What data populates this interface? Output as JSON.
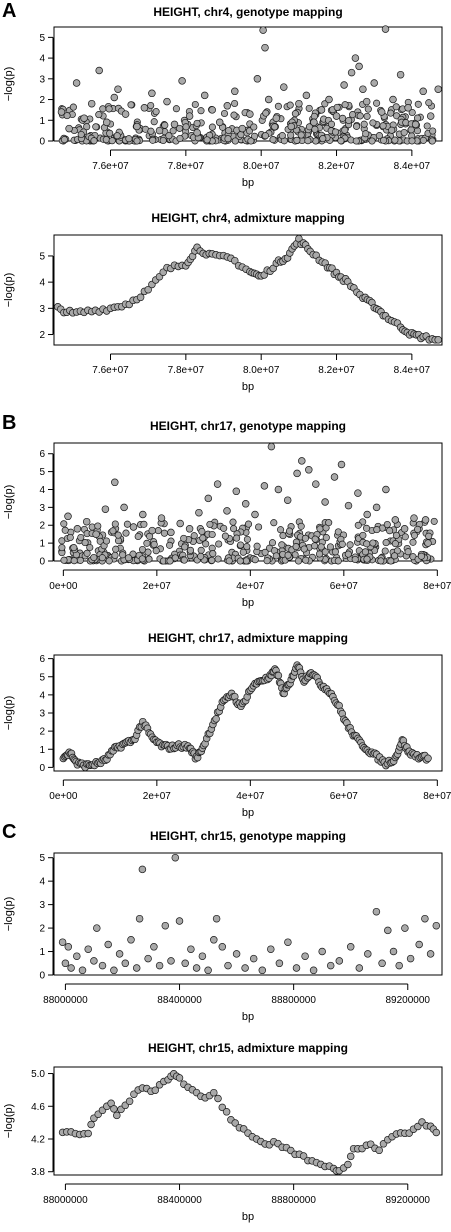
{
  "panel_letters": [
    "A",
    "B",
    "C"
  ],
  "chart_data": [
    {
      "type": "scatter",
      "title": "HEIGHT, chr4, genotype mapping",
      "xlabel": "bp",
      "ylabel": "−log(p)",
      "xlim": [
        74500000,
        84800000
      ],
      "ylim": [
        0,
        5.5
      ],
      "xticks": [
        76000000,
        78000000,
        80000000,
        82000000,
        84000000
      ],
      "xtick_labels": [
        "7.6e+07",
        "7.8e+07",
        "8.0e+07",
        "8.2e+07",
        "8.4e+07"
      ],
      "yticks": [
        0,
        1,
        2,
        3,
        4,
        5
      ],
      "ytick_labels": [
        "0",
        "1",
        "2",
        "3",
        "4",
        "5"
      ],
      "points": [
        [
          74700000,
          1.4
        ],
        [
          74900000,
          0.6
        ],
        [
          75100000,
          2.8
        ],
        [
          75300000,
          1.1
        ],
        [
          75500000,
          1.8
        ],
        [
          75700000,
          3.4
        ],
        [
          75900000,
          0.9
        ],
        [
          76100000,
          2.1
        ],
        [
          76200000,
          2.5
        ],
        [
          76400000,
          1.3
        ],
        [
          76700000,
          0.7
        ],
        [
          76900000,
          1.6
        ],
        [
          77100000,
          2.3
        ],
        [
          77300000,
          0.5
        ],
        [
          77500000,
          1.9
        ],
        [
          77700000,
          0.8
        ],
        [
          77900000,
          2.9
        ],
        [
          78100000,
          1.2
        ],
        [
          78300000,
          0.4
        ],
        [
          78500000,
          2.2
        ],
        [
          78700000,
          1.5
        ],
        [
          78900000,
          0.9
        ],
        [
          79100000,
          1.7
        ],
        [
          79300000,
          2.4
        ],
        [
          79500000,
          0.6
        ],
        [
          79700000,
          1.3
        ],
        [
          79900000,
          3.0
        ],
        [
          80050000,
          5.35
        ],
        [
          80100000,
          4.5
        ],
        [
          80200000,
          2.0
        ],
        [
          80400000,
          1.1
        ],
        [
          80600000,
          2.6
        ],
        [
          80800000,
          0.7
        ],
        [
          81000000,
          1.8
        ],
        [
          81200000,
          2.2
        ],
        [
          81400000,
          0.9
        ],
        [
          81600000,
          1.5
        ],
        [
          81800000,
          2.0
        ],
        [
          82000000,
          1.2
        ],
        [
          82200000,
          2.7
        ],
        [
          82400000,
          3.3
        ],
        [
          82500000,
          4.0
        ],
        [
          82600000,
          3.6
        ],
        [
          82700000,
          2.5
        ],
        [
          82800000,
          1.9
        ],
        [
          83000000,
          2.8
        ],
        [
          83200000,
          1.4
        ],
        [
          83300000,
          5.4
        ],
        [
          83500000,
          2.0
        ],
        [
          83700000,
          3.2
        ],
        [
          83900000,
          1.6
        ],
        [
          84100000,
          0.8
        ],
        [
          84300000,
          2.4
        ],
        [
          84500000,
          1.2
        ],
        [
          84700000,
          2.5
        ]
      ]
    },
    {
      "type": "scatter",
      "title": "HEIGHT, chr4, admixture mapping",
      "xlabel": "bp",
      "ylabel": "−log(p)",
      "xlim": [
        74500000,
        84800000
      ],
      "ylim": [
        1.6,
        5.8
      ],
      "xticks": [
        76000000,
        78000000,
        80000000,
        82000000,
        84000000
      ],
      "xtick_labels": [
        "7.6e+07",
        "7.8e+07",
        "8.0e+07",
        "8.2e+07",
        "8.4e+07"
      ],
      "yticks": [
        2,
        3,
        4,
        5
      ],
      "ytick_labels": [
        "2",
        "3",
        "4",
        "5"
      ],
      "curve": [
        [
          74600000,
          3.0
        ],
        [
          75000000,
          2.8
        ],
        [
          75500000,
          2.9
        ],
        [
          76000000,
          3.0
        ],
        [
          76500000,
          3.2
        ],
        [
          77000000,
          3.7
        ],
        [
          77500000,
          4.5
        ],
        [
          78000000,
          4.7
        ],
        [
          78300000,
          5.3
        ],
        [
          78700000,
          5.0
        ],
        [
          79200000,
          4.9
        ],
        [
          79700000,
          4.4
        ],
        [
          80000000,
          4.2
        ],
        [
          80400000,
          4.7
        ],
        [
          80700000,
          5.0
        ],
        [
          81000000,
          5.6
        ],
        [
          81300000,
          5.2
        ],
        [
          81700000,
          4.7
        ],
        [
          82000000,
          4.3
        ],
        [
          82300000,
          4.0
        ],
        [
          82700000,
          3.4
        ],
        [
          83000000,
          3.1
        ],
        [
          83300000,
          2.7
        ],
        [
          83700000,
          2.3
        ],
        [
          84000000,
          2.0
        ],
        [
          84300000,
          1.9
        ],
        [
          84700000,
          1.8
        ]
      ]
    },
    {
      "type": "scatter",
      "title": "HEIGHT, chr17, genotype mapping",
      "xlabel": "bp",
      "ylabel": "−log(p)",
      "xlim": [
        -2000000,
        81000000
      ],
      "ylim": [
        0,
        6.6
      ],
      "xticks": [
        0,
        20000000,
        40000000,
        60000000,
        80000000
      ],
      "xtick_labels": [
        "0e+00",
        "2e+07",
        "4e+07",
        "6e+07",
        "8e+07"
      ],
      "yticks": [
        0,
        1,
        2,
        3,
        4,
        5,
        6
      ],
      "ytick_labels": [
        "0",
        "1",
        "2",
        "3",
        "4",
        "5",
        "6"
      ],
      "points": [
        [
          1000000,
          2.5
        ],
        [
          3000000,
          1.8
        ],
        [
          5000000,
          2.2
        ],
        [
          7000000,
          1.5
        ],
        [
          9000000,
          2.9
        ],
        [
          11000000,
          4.4
        ],
        [
          13000000,
          3.0
        ],
        [
          15000000,
          1.9
        ],
        [
          17000000,
          2.6
        ],
        [
          19000000,
          1.7
        ],
        [
          21000000,
          2.4
        ],
        [
          23000000,
          1.6
        ],
        [
          25000000,
          2.1
        ],
        [
          27000000,
          1.8
        ],
        [
          29000000,
          2.7
        ],
        [
          31000000,
          3.5
        ],
        [
          33000000,
          4.3
        ],
        [
          35000000,
          2.8
        ],
        [
          37000000,
          3.9
        ],
        [
          39000000,
          3.2
        ],
        [
          41000000,
          2.6
        ],
        [
          43000000,
          4.2
        ],
        [
          44500000,
          6.4
        ],
        [
          46000000,
          4.0
        ],
        [
          48000000,
          3.4
        ],
        [
          50000000,
          4.9
        ],
        [
          51000000,
          5.6
        ],
        [
          52500000,
          5.1
        ],
        [
          54000000,
          4.3
        ],
        [
          56000000,
          3.3
        ],
        [
          58000000,
          4.7
        ],
        [
          59500000,
          5.4
        ],
        [
          61000000,
          3.1
        ],
        [
          63000000,
          3.8
        ],
        [
          65000000,
          2.6
        ],
        [
          67000000,
          3.0
        ],
        [
          69000000,
          4.0
        ],
        [
          71000000,
          2.3
        ],
        [
          73000000,
          1.8
        ],
        [
          75000000,
          2.4
        ],
        [
          77500000,
          2.3
        ],
        [
          78000000,
          1.0
        ]
      ]
    },
    {
      "type": "scatter",
      "title": "HEIGHT, chr17, admixture mapping",
      "xlabel": "bp",
      "ylabel": "−log(p)",
      "xlim": [
        -2000000,
        81000000
      ],
      "ylim": [
        -0.2,
        6.2
      ],
      "xticks": [
        0,
        20000000,
        40000000,
        60000000,
        80000000
      ],
      "xtick_labels": [
        "0e+00",
        "2e+07",
        "4e+07",
        "6e+07",
        "8e+07"
      ],
      "yticks": [
        0,
        1,
        2,
        3,
        4,
        5,
        6
      ],
      "ytick_labels": [
        "0",
        "1",
        "2",
        "3",
        "4",
        "5",
        "6"
      ],
      "curve": [
        [
          0,
          0.6
        ],
        [
          1500000,
          0.8
        ],
        [
          3000000,
          0.2
        ],
        [
          5000000,
          0.1
        ],
        [
          7000000,
          0.2
        ],
        [
          9000000,
          0.4
        ],
        [
          11000000,
          1.0
        ],
        [
          13000000,
          1.3
        ],
        [
          15000000,
          1.5
        ],
        [
          17000000,
          2.5
        ],
        [
          19000000,
          1.6
        ],
        [
          21000000,
          1.2
        ],
        [
          23000000,
          1.1
        ],
        [
          25000000,
          1.2
        ],
        [
          27000000,
          1.1
        ],
        [
          28500000,
          0.5
        ],
        [
          30000000,
          1.2
        ],
        [
          32000000,
          2.4
        ],
        [
          34000000,
          3.5
        ],
        [
          36000000,
          4.1
        ],
        [
          38000000,
          3.3
        ],
        [
          40000000,
          4.3
        ],
        [
          42000000,
          4.8
        ],
        [
          44000000,
          4.9
        ],
        [
          45500000,
          5.4
        ],
        [
          47000000,
          4.1
        ],
        [
          48500000,
          4.6
        ],
        [
          50000000,
          5.7
        ],
        [
          51500000,
          4.8
        ],
        [
          53000000,
          5.3
        ],
        [
          55000000,
          4.6
        ],
        [
          57000000,
          4.2
        ],
        [
          59000000,
          3.3
        ],
        [
          61000000,
          2.2
        ],
        [
          63000000,
          1.5
        ],
        [
          65000000,
          1.0
        ],
        [
          67000000,
          0.6
        ],
        [
          69000000,
          0.2
        ],
        [
          71000000,
          0.5
        ],
        [
          72500000,
          1.5
        ],
        [
          74000000,
          0.8
        ],
        [
          76000000,
          0.6
        ],
        [
          78000000,
          0.5
        ]
      ]
    },
    {
      "type": "scatter",
      "title": "HEIGHT, chr15, genotype mapping",
      "xlabel": "bp",
      "ylabel": "−log(p)",
      "xlim": [
        87960000,
        89320000
      ],
      "ylim": [
        0,
        5.2
      ],
      "xticks": [
        88000000,
        88400000,
        88800000,
        89200000
      ],
      "xtick_labels": [
        "88000000",
        "88400000",
        "88800000",
        "89200000"
      ],
      "yticks": [
        0,
        1,
        2,
        3,
        4,
        5
      ],
      "ytick_labels": [
        "0",
        "1",
        "2",
        "3",
        "4",
        "5"
      ],
      "points": [
        [
          87990000,
          1.4
        ],
        [
          88000000,
          0.5
        ],
        [
          88010000,
          1.2
        ],
        [
          88020000,
          0.3
        ],
        [
          88040000,
          0.8
        ],
        [
          88060000,
          0.2
        ],
        [
          88080000,
          1.1
        ],
        [
          88100000,
          0.6
        ],
        [
          88110000,
          2.0
        ],
        [
          88130000,
          0.4
        ],
        [
          88150000,
          1.3
        ],
        [
          88170000,
          0.2
        ],
        [
          88190000,
          0.9
        ],
        [
          88210000,
          0.5
        ],
        [
          88230000,
          1.5
        ],
        [
          88250000,
          0.3
        ],
        [
          88260000,
          2.4
        ],
        [
          88270000,
          4.5
        ],
        [
          88290000,
          0.7
        ],
        [
          88310000,
          1.2
        ],
        [
          88330000,
          0.4
        ],
        [
          88350000,
          2.1
        ],
        [
          88370000,
          0.6
        ],
        [
          88385000,
          5.0
        ],
        [
          88400000,
          2.3
        ],
        [
          88420000,
          0.5
        ],
        [
          88440000,
          1.1
        ],
        [
          88460000,
          0.3
        ],
        [
          88480000,
          0.8
        ],
        [
          88500000,
          0.2
        ],
        [
          88520000,
          1.5
        ],
        [
          88530000,
          2.4
        ],
        [
          88550000,
          1.2
        ],
        [
          88570000,
          0.4
        ],
        [
          88600000,
          0.9
        ],
        [
          88630000,
          0.3
        ],
        [
          88660000,
          0.7
        ],
        [
          88690000,
          0.2
        ],
        [
          88720000,
          1.1
        ],
        [
          88750000,
          0.5
        ],
        [
          88780000,
          1.4
        ],
        [
          88810000,
          0.3
        ],
        [
          88840000,
          0.8
        ],
        [
          88870000,
          0.2
        ],
        [
          88900000,
          1.0
        ],
        [
          88930000,
          0.4
        ],
        [
          88960000,
          0.6
        ],
        [
          89000000,
          1.2
        ],
        [
          89030000,
          0.3
        ],
        [
          89060000,
          0.9
        ],
        [
          89090000,
          2.7
        ],
        [
          89110000,
          0.5
        ],
        [
          89130000,
          1.9
        ],
        [
          89150000,
          1.0
        ],
        [
          89170000,
          0.4
        ],
        [
          89190000,
          2.0
        ],
        [
          89210000,
          0.7
        ],
        [
          89240000,
          1.3
        ],
        [
          89260000,
          2.4
        ],
        [
          89280000,
          0.9
        ],
        [
          89300000,
          2.1
        ]
      ]
    },
    {
      "type": "scatter",
      "title": "HEIGHT, chr15, admixture mapping",
      "xlabel": "bp",
      "ylabel": "−log(p)",
      "xlim": [
        87960000,
        89320000
      ],
      "ylim": [
        3.76,
        5.08
      ],
      "xticks": [
        88000000,
        88400000,
        88800000,
        89200000
      ],
      "xtick_labels": [
        "88000000",
        "88400000",
        "88800000",
        "89200000"
      ],
      "yticks": [
        3.8,
        4.2,
        4.6,
        5.0
      ],
      "ytick_labels": [
        "3.8",
        "4.2",
        "4.6",
        "5.0"
      ],
      "curve": [
        [
          87990000,
          4.3
        ],
        [
          88020000,
          4.28
        ],
        [
          88050000,
          4.25
        ],
        [
          88080000,
          4.28
        ],
        [
          88100000,
          4.45
        ],
        [
          88130000,
          4.55
        ],
        [
          88160000,
          4.62
        ],
        [
          88180000,
          4.5
        ],
        [
          88210000,
          4.6
        ],
        [
          88240000,
          4.75
        ],
        [
          88270000,
          4.82
        ],
        [
          88300000,
          4.78
        ],
        [
          88330000,
          4.85
        ],
        [
          88360000,
          4.92
        ],
        [
          88380000,
          5.0
        ],
        [
          88400000,
          4.95
        ],
        [
          88430000,
          4.82
        ],
        [
          88460000,
          4.75
        ],
        [
          88490000,
          4.7
        ],
        [
          88520000,
          4.78
        ],
        [
          88550000,
          4.6
        ],
        [
          88580000,
          4.45
        ],
        [
          88610000,
          4.35
        ],
        [
          88640000,
          4.28
        ],
        [
          88670000,
          4.2
        ],
        [
          88700000,
          4.12
        ],
        [
          88730000,
          4.15
        ],
        [
          88760000,
          4.1
        ],
        [
          88790000,
          4.05
        ],
        [
          88820000,
          4.0
        ],
        [
          88850000,
          3.95
        ],
        [
          88880000,
          3.9
        ],
        [
          88910000,
          3.88
        ],
        [
          88940000,
          3.85
        ],
        [
          88960000,
          3.8
        ],
        [
          88990000,
          3.9
        ],
        [
          89010000,
          4.1
        ],
        [
          89040000,
          4.08
        ],
        [
          89070000,
          4.15
        ],
        [
          89100000,
          4.05
        ],
        [
          89130000,
          4.2
        ],
        [
          89160000,
          4.28
        ],
        [
          89190000,
          4.25
        ],
        [
          89220000,
          4.32
        ],
        [
          89250000,
          4.4
        ],
        [
          89280000,
          4.35
        ],
        [
          89300000,
          4.28
        ]
      ]
    }
  ]
}
